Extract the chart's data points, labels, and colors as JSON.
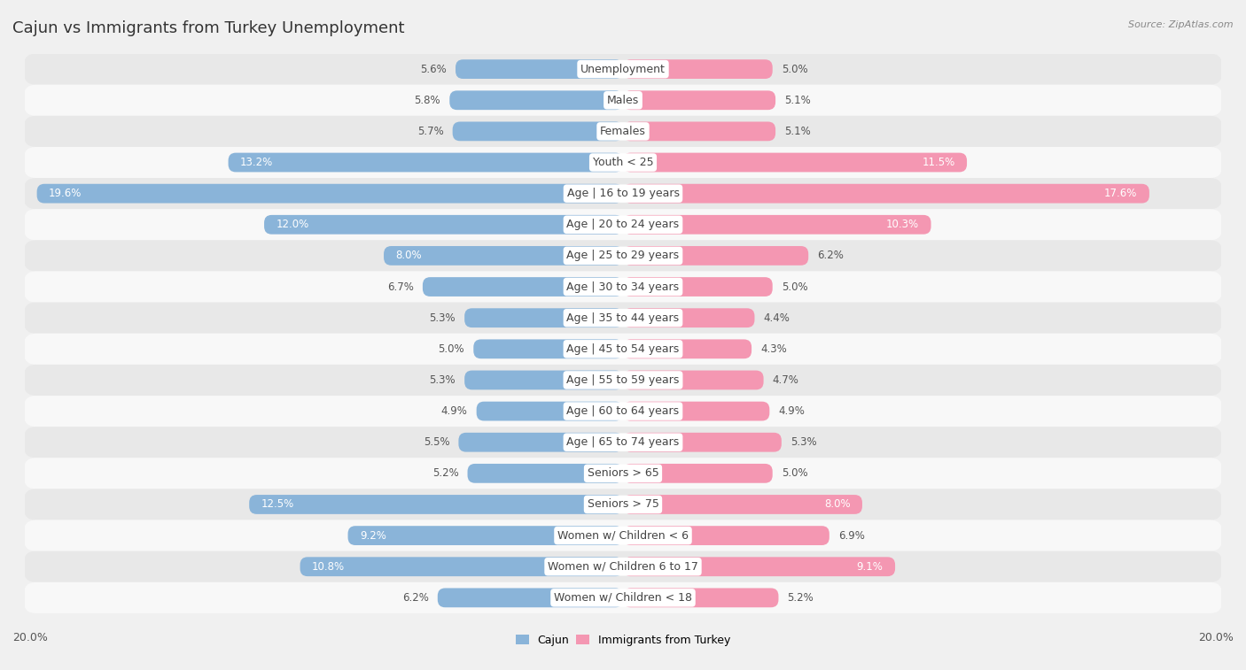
{
  "title": "Cajun vs Immigrants from Turkey Unemployment",
  "source": "Source: ZipAtlas.com",
  "categories": [
    "Unemployment",
    "Males",
    "Females",
    "Youth < 25",
    "Age | 16 to 19 years",
    "Age | 20 to 24 years",
    "Age | 25 to 29 years",
    "Age | 30 to 34 years",
    "Age | 35 to 44 years",
    "Age | 45 to 54 years",
    "Age | 55 to 59 years",
    "Age | 60 to 64 years",
    "Age | 65 to 74 years",
    "Seniors > 65",
    "Seniors > 75",
    "Women w/ Children < 6",
    "Women w/ Children 6 to 17",
    "Women w/ Children < 18"
  ],
  "cajun_values": [
    5.6,
    5.8,
    5.7,
    13.2,
    19.6,
    12.0,
    8.0,
    6.7,
    5.3,
    5.0,
    5.3,
    4.9,
    5.5,
    5.2,
    12.5,
    9.2,
    10.8,
    6.2
  ],
  "turkey_values": [
    5.0,
    5.1,
    5.1,
    11.5,
    17.6,
    10.3,
    6.2,
    5.0,
    4.4,
    4.3,
    4.7,
    4.9,
    5.3,
    5.0,
    8.0,
    6.9,
    9.1,
    5.2
  ],
  "cajun_color": "#8ab4d9",
  "turkey_color": "#f497b2",
  "cajun_label": "Cajun",
  "turkey_label": "Immigrants from Turkey",
  "bar_height": 0.62,
  "xlim": 20.0,
  "background_color": "#f0f0f0",
  "row_odd_color": "#e8e8e8",
  "row_even_color": "#f8f8f8",
  "title_fontsize": 13,
  "label_fontsize": 9,
  "value_fontsize": 8.5,
  "inside_white_threshold": 8.0
}
